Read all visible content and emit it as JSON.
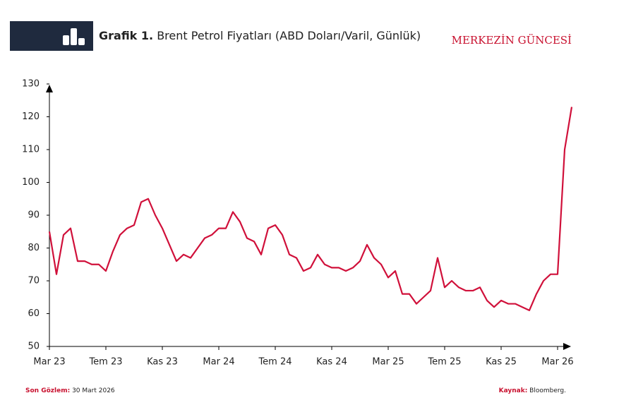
{
  "header": {
    "brand": "MERKEZİN GÜNCESİ"
  },
  "chart_data": {
    "type": "line",
    "title_prefix": "Grafik 1.",
    "title": "Brent Petrol Fiyatları (ABD Doları/Varil, Günlük)",
    "categories": [
      "Mar 23",
      null,
      null,
      null,
      null,
      null,
      null,
      null,
      "Tem 23",
      null,
      null,
      null,
      null,
      null,
      null,
      null,
      "Kas 23",
      null,
      null,
      null,
      null,
      null,
      null,
      null,
      "Mar 24",
      null,
      null,
      null,
      null,
      null,
      null,
      null,
      "Tem 24",
      null,
      null,
      null,
      null,
      null,
      null,
      null,
      "Kas 24",
      null,
      null,
      null,
      null,
      null,
      null,
      null,
      "Mar 25",
      null,
      null,
      null,
      null,
      null,
      null,
      null,
      "Tem 25",
      null,
      null,
      null,
      null,
      null,
      null,
      null,
      "Kas 25",
      null,
      null,
      null,
      null,
      null,
      null,
      null,
      "Mar 26",
      null,
      null
    ],
    "series": [
      {
        "name": "Brent",
        "color": "#d0103a",
        "values": [
          85,
          72,
          84,
          86,
          76,
          76,
          75,
          75,
          73,
          79,
          84,
          86,
          87,
          94,
          95,
          90,
          86,
          81,
          76,
          78,
          77,
          80,
          83,
          84,
          86,
          86,
          91,
          88,
          83,
          82,
          78,
          86,
          87,
          84,
          78,
          77,
          73,
          74,
          78,
          75,
          74,
          74,
          73,
          74,
          76,
          81,
          77,
          75,
          71,
          73,
          66,
          66,
          63,
          65,
          67,
          77,
          68,
          70,
          68,
          67,
          67,
          68,
          64,
          62,
          64,
          63,
          63,
          62,
          61,
          66,
          70,
          72,
          72,
          110,
          123
        ]
      }
    ],
    "ylim": [
      50,
      130
    ],
    "yticks": [
      50,
      60,
      70,
      80,
      90,
      100,
      110,
      120,
      130
    ],
    "grid": false
  },
  "footer": {
    "obs_label": "Son Gözlem:",
    "obs_date": "30 Mart 2026",
    "source_label": "Kaynak:",
    "source": "Bloomberg."
  }
}
